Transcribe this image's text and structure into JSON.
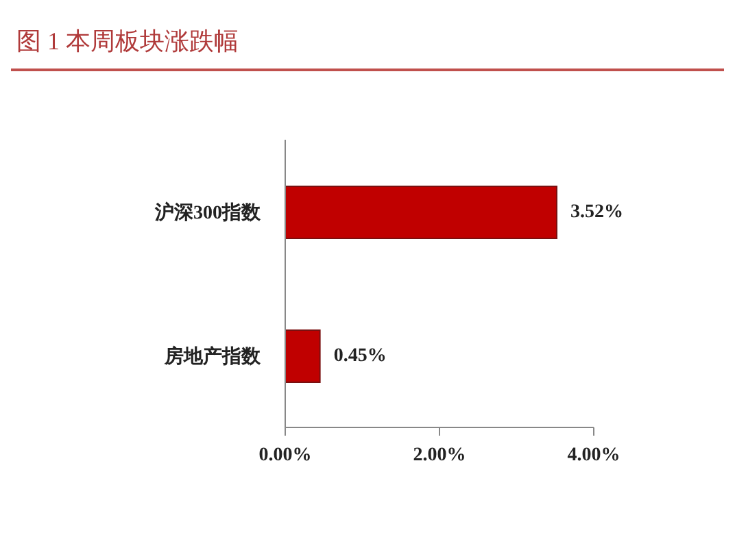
{
  "chart_data": {
    "type": "bar",
    "orientation": "horizontal",
    "title": "图 1 本周板块涨跌幅",
    "categories": [
      "沪深300指数",
      "房地产指数"
    ],
    "values": [
      3.52,
      0.45
    ],
    "value_labels": [
      "3.52%",
      "0.45%"
    ],
    "color": "#c00000",
    "xlim": [
      0,
      4
    ],
    "xticks": [
      {
        "value": 0,
        "label": "0.00%"
      },
      {
        "value": 2,
        "label": "2.00%"
      },
      {
        "value": 4,
        "label": "4.00%"
      }
    ],
    "grid": false,
    "legend": false
  }
}
